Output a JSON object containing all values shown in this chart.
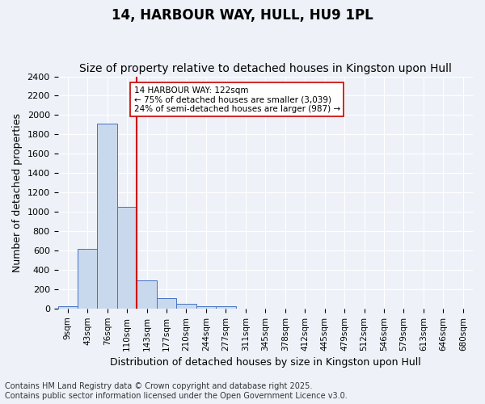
{
  "title": "14, HARBOUR WAY, HULL, HU9 1PL",
  "subtitle": "Size of property relative to detached houses in Kingston upon Hull",
  "xlabel": "Distribution of detached houses by size in Kingston upon Hull",
  "ylabel": "Number of detached properties",
  "footnote": "Contains HM Land Registry data © Crown copyright and database right 2025.\nContains public sector information licensed under the Open Government Licence v3.0.",
  "bin_labels": [
    "9sqm",
    "43sqm",
    "76sqm",
    "110sqm",
    "143sqm",
    "177sqm",
    "210sqm",
    "244sqm",
    "277sqm",
    "311sqm",
    "345sqm",
    "378sqm",
    "412sqm",
    "445sqm",
    "479sqm",
    "512sqm",
    "546sqm",
    "579sqm",
    "613sqm",
    "646sqm",
    "680sqm"
  ],
  "bar_values": [
    20,
    615,
    1910,
    1050,
    290,
    110,
    45,
    25,
    20,
    0,
    0,
    0,
    0,
    0,
    0,
    0,
    0,
    0,
    0,
    0,
    0
  ],
  "bar_color": "#c9d9ed",
  "bar_edge_color": "#4472c4",
  "vline_x": 3.5,
  "vline_color": "#cc0000",
  "annotation_text": "14 HARBOUR WAY: 122sqm\n← 75% of detached houses are smaller (3,039)\n24% of semi-detached houses are larger (987) →",
  "annotation_box_color": "#ffffff",
  "annotation_box_edge_color": "#cc0000",
  "ylim": [
    0,
    2400
  ],
  "yticks": [
    0,
    200,
    400,
    600,
    800,
    1000,
    1200,
    1400,
    1600,
    1800,
    2000,
    2200,
    2400
  ],
  "background_color": "#eef2f8",
  "grid_color": "#ffffff",
  "title_fontsize": 12,
  "subtitle_fontsize": 10,
  "axis_fontsize": 9,
  "tick_fontsize": 8,
  "footnote_fontsize": 7
}
